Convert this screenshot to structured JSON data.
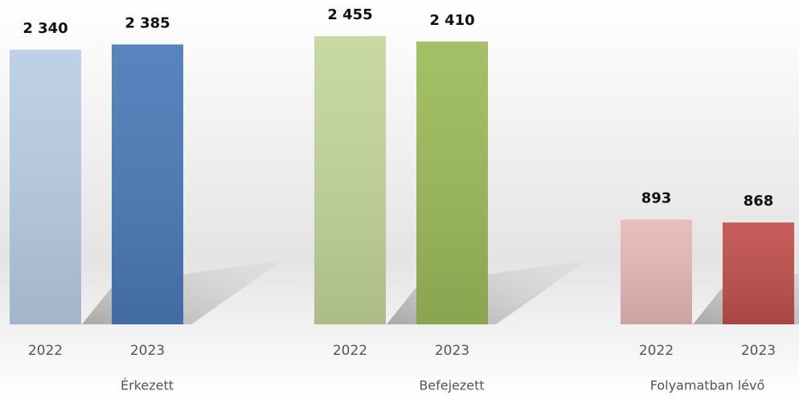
{
  "chart_data": {
    "type": "bar",
    "categories": [
      "Érkezett",
      "Befejezett",
      "Folyamatban lévő"
    ],
    "series": [
      {
        "name": "2022",
        "colors": [
          "#b9cde5",
          "#c3d69b",
          "#e6b9b8"
        ],
        "values": [
          2340,
          2455,
          893
        ],
        "value_labels": [
          "2 340",
          "2 455",
          "893"
        ]
      },
      {
        "name": "2023",
        "colors": [
          "#4a7ab8",
          "#9bbb59",
          "#c0504d"
        ],
        "values": [
          2385,
          2410,
          868
        ],
        "value_labels": [
          "2 385",
          "2 410",
          "868"
        ]
      }
    ],
    "ylim": [
      0,
      2500
    ],
    "grid": false
  }
}
